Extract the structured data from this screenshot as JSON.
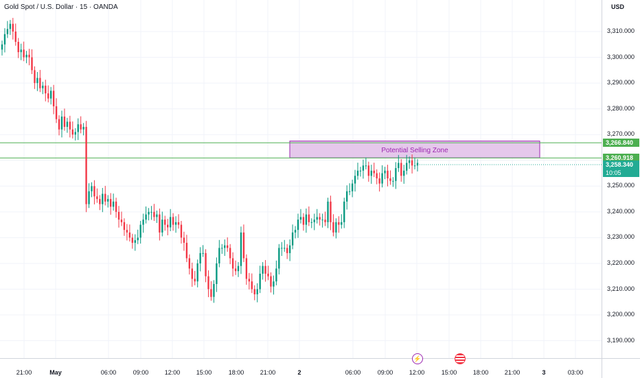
{
  "chart": {
    "title": "Gold Spot / U.S. Dollar · 15 · OANDA",
    "currency": "USD"
  },
  "price_axis": {
    "ticks": [
      "3,310.000",
      "3,300.000",
      "3,290.000",
      "3,280.000",
      "3,270.000",
      "3,250.000",
      "3,240.000",
      "3,230.000",
      "3,220.000",
      "3,210.000",
      "3,200.000",
      "3,190.000"
    ],
    "labels": {
      "upper_line": "3,266.840",
      "lower_line": "3,260.918",
      "current_price": "3,258.340",
      "countdown": "10:05"
    }
  },
  "time_axis": {
    "ticks": [
      "21:00",
      "May",
      "06:00",
      "09:00",
      "12:00",
      "15:00",
      "18:00",
      "21:00",
      "2",
      "06:00",
      "09:00",
      "12:00",
      "15:00",
      "18:00",
      "21:00",
      "3",
      "03:00"
    ]
  },
  "annotations": {
    "zone_label": "Potential Selling Zone"
  },
  "events": [
    {
      "icon": "lightning-icon"
    },
    {
      "icon": "us-flag-icon"
    }
  ],
  "colors": {
    "up": "#089981",
    "down": "#f23645",
    "zone_fill": "#e1bee7",
    "zone_border": "#9c27b0",
    "level_line": "#4caf50",
    "current": "#22ab94"
  },
  "chart_data": {
    "type": "candlestick",
    "symbol": "XAUUSD",
    "timeframe": "15",
    "ylim": [
      3180,
      3318
    ],
    "levels": [
      3266.84,
      3260.918
    ],
    "zone": {
      "low": 3261,
      "high": 3267.5,
      "label": "Potential Selling Zone"
    },
    "last_price": 3258.34,
    "closes": [
      3305,
      3309,
      3311,
      3313,
      3310,
      3306,
      3302,
      3303,
      3300,
      3301,
      3300,
      3295,
      3290,
      3292,
      3288,
      3289,
      3286,
      3284,
      3287,
      3281,
      3276,
      3272,
      3277,
      3273,
      3275,
      3272,
      3270,
      3271,
      3274,
      3272,
      3273,
      3243,
      3248,
      3250,
      3246,
      3245,
      3243,
      3247,
      3244,
      3245,
      3242,
      3244,
      3240,
      3237,
      3236,
      3233,
      3232,
      3230,
      3228,
      3229,
      3230,
      3235,
      3237,
      3239,
      3240,
      3240,
      3238,
      3239,
      3232,
      3237,
      3235,
      3234,
      3238,
      3235,
      3236,
      3235,
      3230,
      3228,
      3222,
      3218,
      3214,
      3213,
      3220,
      3224,
      3224,
      3215,
      3210,
      3207,
      3212,
      3220,
      3226,
      3226,
      3227,
      3226,
      3222,
      3218,
      3217,
      3219,
      3232,
      3222,
      3214,
      3213,
      3210,
      3208,
      3210,
      3216,
      3219,
      3216,
      3215,
      3211,
      3213,
      3218,
      3226,
      3226,
      3226,
      3224,
      3227,
      3232,
      3233,
      3237,
      3238,
      3235,
      3239,
      3236,
      3236,
      3237,
      3238,
      3237,
      3237,
      3236,
      3244,
      3236,
      3232,
      3236,
      3235,
      3236,
      3244,
      3248,
      3248,
      3251,
      3254,
      3256,
      3256,
      3258,
      3258,
      3254,
      3256,
      3255,
      3253,
      3251,
      3255,
      3256,
      3253,
      3252,
      3252,
      3257,
      3259,
      3254,
      3256,
      3259,
      3260,
      3258,
      3258,
      3259
    ]
  }
}
